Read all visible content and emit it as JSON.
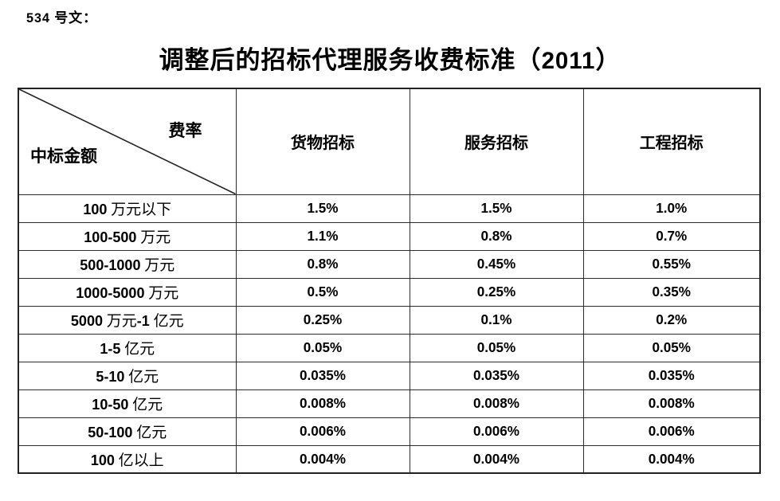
{
  "page": {
    "doc_number": "534 号文：",
    "title": "调整后的招标代理服务收费标准（2011）"
  },
  "table": {
    "corner": {
      "top_right_label": "费率",
      "bottom_left_label": "中标金额"
    },
    "columns": [
      "货物招标",
      "服务招标",
      "工程招标"
    ],
    "rows": [
      {
        "label": "100 万元以下",
        "values": [
          "1.5%",
          "1.5%",
          "1.0%"
        ]
      },
      {
        "label": "100-500 万元",
        "values": [
          "1.1%",
          "0.8%",
          "0.7%"
        ]
      },
      {
        "label": "500-1000 万元",
        "values": [
          "0.8%",
          "0.45%",
          "0.55%"
        ]
      },
      {
        "label": "1000-5000 万元",
        "values": [
          "0.5%",
          "0.25%",
          "0.35%"
        ]
      },
      {
        "label": "5000 万元-1 亿元",
        "values": [
          "0.25%",
          "0.1%",
          "0.2%"
        ]
      },
      {
        "label": "1-5 亿元",
        "values": [
          "0.05%",
          "0.05%",
          "0.05%"
        ]
      },
      {
        "label": "5-10 亿元",
        "values": [
          "0.035%",
          "0.035%",
          "0.035%"
        ]
      },
      {
        "label": "10-50 亿元",
        "values": [
          "0.008%",
          "0.008%",
          "0.008%"
        ]
      },
      {
        "label": "50-100 亿元",
        "values": [
          "0.006%",
          "0.006%",
          "0.006%"
        ]
      },
      {
        "label": "100 亿以上",
        "values": [
          "0.004%",
          "0.004%",
          "0.004%"
        ]
      }
    ]
  },
  "colors": {
    "text": "#000000",
    "border": "#2b2b2b",
    "background": "#ffffff"
  }
}
